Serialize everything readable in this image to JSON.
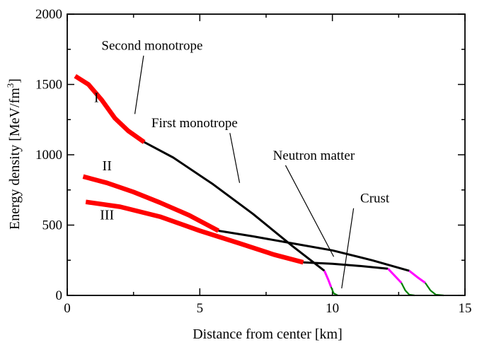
{
  "chart_data": {
    "type": "line",
    "title": "",
    "xlabel": "Distance from center [km]",
    "ylabel": "Energy density [MeV/fm",
    "ylabel_sup": "3",
    "ylabel_close": "]",
    "xlim": [
      0,
      15
    ],
    "ylim": [
      0,
      2000
    ],
    "x_ticks": [
      "0",
      "5",
      "10",
      "15"
    ],
    "y_ticks": [
      "0",
      "500",
      "1000",
      "1500",
      "2000"
    ],
    "colors": {
      "second_monotrope": "#ff0000",
      "first_monotrope": "#000000",
      "neutron_matter": "#ff00ff",
      "crust": "#008000"
    },
    "series": [
      {
        "name": "I",
        "segments": [
          {
            "component": "second_monotrope",
            "x": [
              0.3,
              0.8,
              1.3,
              1.8,
              2.3,
              2.9
            ],
            "y": [
              1560,
              1500,
              1390,
              1260,
              1170,
              1090
            ]
          },
          {
            "component": "first_monotrope",
            "x": [
              2.9,
              4.0,
              5.5,
              7.0,
              8.5,
              9.7
            ],
            "y": [
              1090,
              980,
              790,
              580,
              350,
              175
            ]
          },
          {
            "component": "neutron_matter",
            "x": [
              9.7,
              9.85,
              9.95
            ],
            "y": [
              175,
              110,
              60
            ]
          },
          {
            "component": "crust",
            "x": [
              9.95,
              10.05,
              10.2
            ],
            "y": [
              60,
              15,
              0
            ]
          }
        ]
      },
      {
        "name": "II",
        "segments": [
          {
            "component": "second_monotrope",
            "x": [
              0.6,
              1.5,
              2.5,
              3.5,
              4.6,
              5.7
            ],
            "y": [
              845,
              800,
              735,
              660,
              570,
              460
            ]
          },
          {
            "component": "first_monotrope",
            "x": [
              5.7,
              7.0,
              8.5,
              10.0,
              11.5,
              12.9
            ],
            "y": [
              460,
              420,
              370,
              320,
              250,
              175
            ]
          },
          {
            "component": "neutron_matter",
            "x": [
              12.9,
              13.2,
              13.5
            ],
            "y": [
              175,
              130,
              90
            ]
          },
          {
            "component": "crust",
            "x": [
              13.5,
              13.7,
              13.9,
              14.2
            ],
            "y": [
              90,
              35,
              5,
              0
            ]
          }
        ]
      },
      {
        "name": "III",
        "segments": [
          {
            "component": "second_monotrope",
            "x": [
              0.7,
              2.0,
              3.5,
              5.0,
              6.5,
              7.8,
              8.9
            ],
            "y": [
              665,
              630,
              560,
              460,
              370,
              290,
              235
            ]
          },
          {
            "component": "first_monotrope",
            "x": [
              8.9,
              10.0,
              11.0,
              12.1
            ],
            "y": [
              235,
              225,
              210,
              190
            ]
          },
          {
            "component": "neutron_matter",
            "x": [
              12.1,
              12.35,
              12.6
            ],
            "y": [
              190,
              140,
              90
            ]
          },
          {
            "component": "crust",
            "x": [
              12.6,
              12.75,
              12.9,
              13.1
            ],
            "y": [
              90,
              35,
              5,
              0
            ]
          }
        ]
      }
    ],
    "series_labels": [
      {
        "text": "I",
        "x": 1.1,
        "y": 1375
      },
      {
        "text": "II",
        "x": 1.5,
        "y": 890
      },
      {
        "text": "III",
        "x": 1.5,
        "y": 540
      }
    ],
    "annotations": [
      {
        "text": "Second monotrope",
        "text_x": 3.2,
        "text_y": 1745,
        "target_x": 2.55,
        "target_y": 1290
      },
      {
        "text": "First monotrope",
        "text_x": 4.8,
        "text_y": 1195,
        "target_x": 6.5,
        "target_y": 800
      },
      {
        "text": "Neutron matter",
        "text_x": 9.3,
        "text_y": 965,
        "target_x": 10.05,
        "target_y": 275
      },
      {
        "text": "Crust",
        "text_x": 11.6,
        "text_y": 660,
        "target_x": 10.35,
        "target_y": 50
      }
    ]
  }
}
